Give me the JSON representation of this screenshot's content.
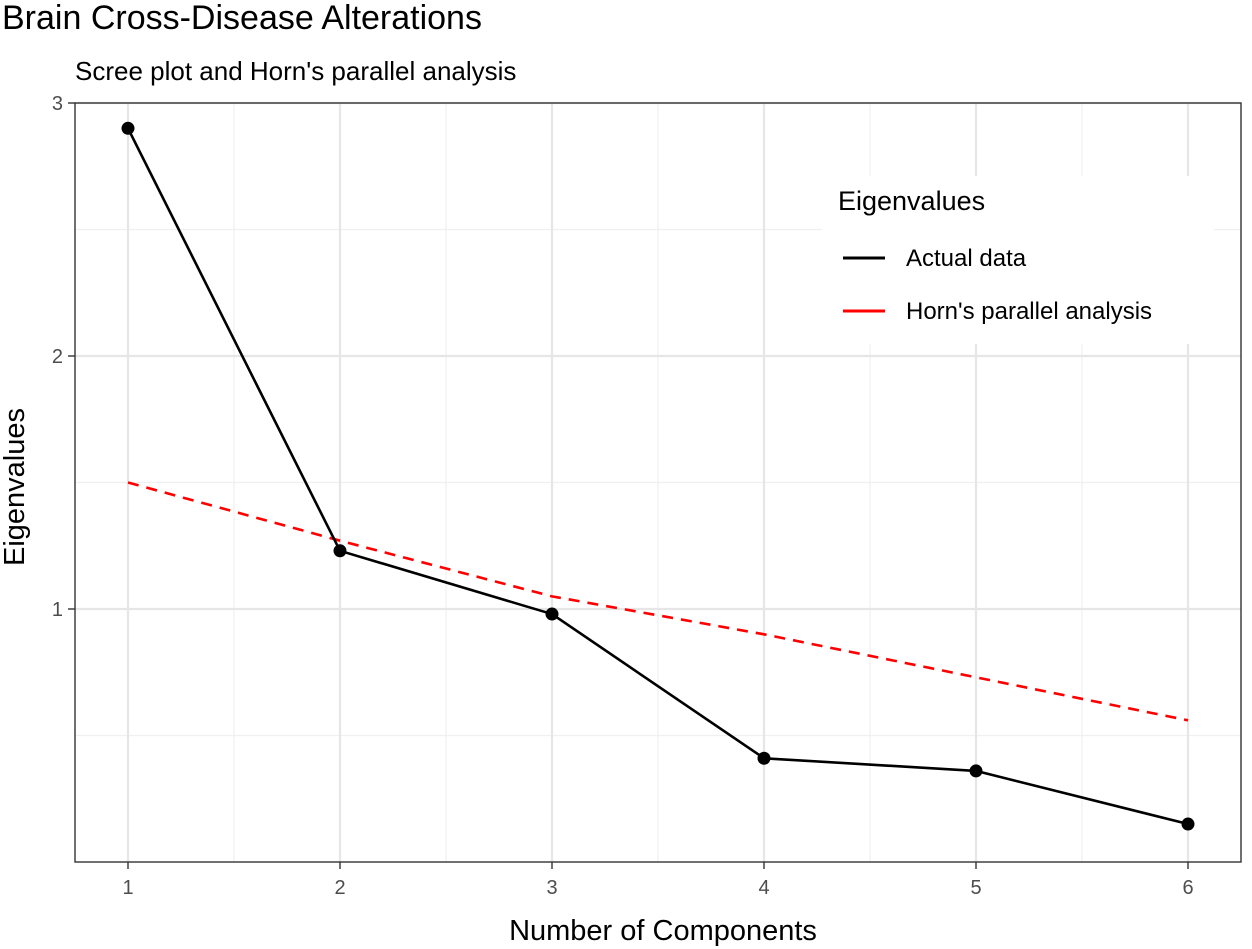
{
  "chart_data": {
    "type": "line",
    "title": "Brain Cross-Disease Alterations",
    "subtitle": "Scree plot and Horn's parallel analysis",
    "xlabel": "Number of Components",
    "ylabel": "Eigenvalues",
    "x": [
      1,
      2,
      3,
      4,
      5,
      6
    ],
    "x_ticks": [
      "1",
      "2",
      "3",
      "4",
      "5",
      "6"
    ],
    "y_ticks": [
      "1",
      "2",
      "3"
    ],
    "xlim": [
      0.75,
      6.25
    ],
    "ylim": [
      0.0,
      3.0
    ],
    "grid": true,
    "legend": {
      "title": "Eigenvalues",
      "placement": "top-right"
    },
    "series": [
      {
        "name": "Actual data",
        "color": "#000000",
        "style": "solid",
        "markers": true,
        "values": [
          2.9,
          1.23,
          0.98,
          0.41,
          0.36,
          0.15
        ]
      },
      {
        "name": "Horn's parallel analysis",
        "color": "#ff0000",
        "style": "dashed",
        "markers": false,
        "values": [
          1.5,
          1.27,
          1.05,
          0.9,
          0.73,
          0.56
        ]
      }
    ]
  }
}
